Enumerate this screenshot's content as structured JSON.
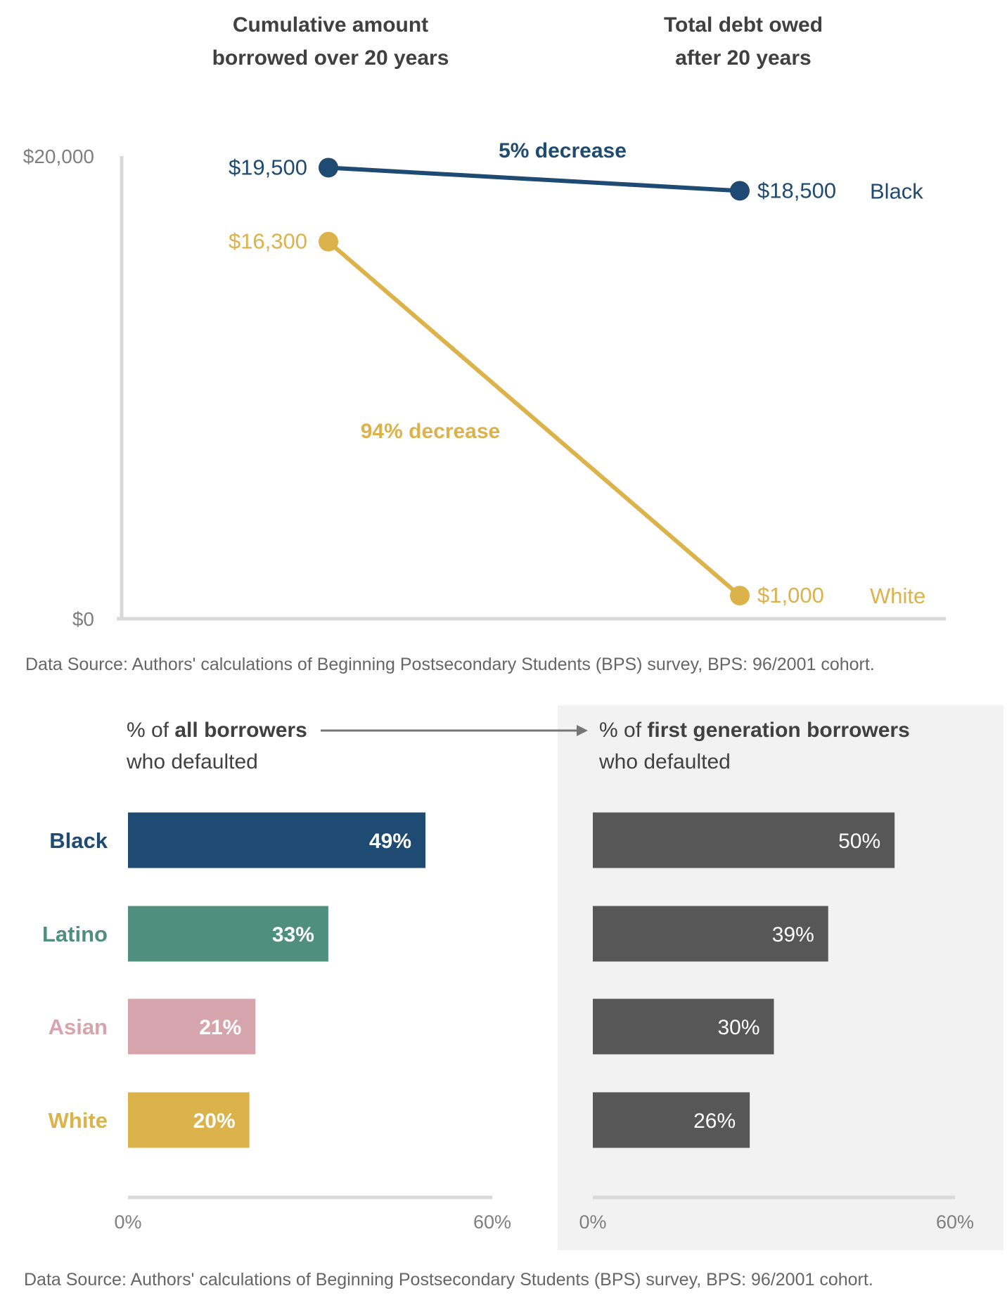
{
  "colors": {
    "black": "#1f4a72",
    "latino": "#4f8f7e",
    "asian": "#d6a4ad",
    "white": "#dcb24b",
    "first_gen_bar": "#575757",
    "axis": "#d9d9d9",
    "panel_bg": "#f2f2f2",
    "source_text": "#666666",
    "arrow": "#777777"
  },
  "sources": {
    "top": "Data Source: Authors' calculations of Beginning Postsecondary Students (BPS) survey, BPS: 96/2001 cohort.",
    "bottom": "Data Source: Authors' calculations of Beginning Postsecondary Students (BPS) survey, BPS: 96/2001 cohort."
  },
  "chart_data": [
    {
      "type": "line",
      "subtype": "slope",
      "column_headers": [
        [
          "Cumulative amount",
          "borrowed  over 20 years"
        ],
        [
          "Total debt owed",
          "after 20 years"
        ]
      ],
      "ylim": [
        0,
        20000
      ],
      "yticks": [
        "$0",
        "$20,000"
      ],
      "grid": false,
      "series": [
        {
          "name": "Black",
          "color_key": "black",
          "values": [
            19500,
            18500
          ],
          "labels": [
            "$19,500",
            "$18,500"
          ],
          "change_label": "5% decrease"
        },
        {
          "name": "White",
          "color_key": "white",
          "values": [
            16300,
            1000
          ],
          "labels": [
            "$16,300",
            "$1,000"
          ],
          "change_label": "94% decrease"
        }
      ]
    },
    {
      "type": "bar",
      "orientation": "horizontal",
      "title_lines": [
        [
          "% of ",
          "all borrowers"
        ],
        [
          "who defaulted"
        ]
      ],
      "categories": [
        "Black",
        "Latino",
        "Asian",
        "White"
      ],
      "category_color_keys": [
        "black",
        "latino",
        "asian",
        "white"
      ],
      "values": [
        49,
        33,
        21,
        20
      ],
      "value_labels": [
        "49%",
        "33%",
        "21%",
        "20%"
      ],
      "xlim": [
        0,
        60
      ],
      "xticks": [
        "0%",
        "60%"
      ]
    },
    {
      "type": "bar",
      "orientation": "horizontal",
      "title_lines": [
        [
          "% of ",
          "first generation borrowers"
        ],
        [
          "who defaulted"
        ]
      ],
      "categories": [
        "Black",
        "Latino",
        "Asian",
        "White"
      ],
      "values": [
        50,
        39,
        30,
        26
      ],
      "value_labels": [
        "50%",
        "39%",
        "30%",
        "26%"
      ],
      "xlim": [
        0,
        60
      ],
      "xticks": [
        "0%",
        "60%"
      ]
    }
  ]
}
